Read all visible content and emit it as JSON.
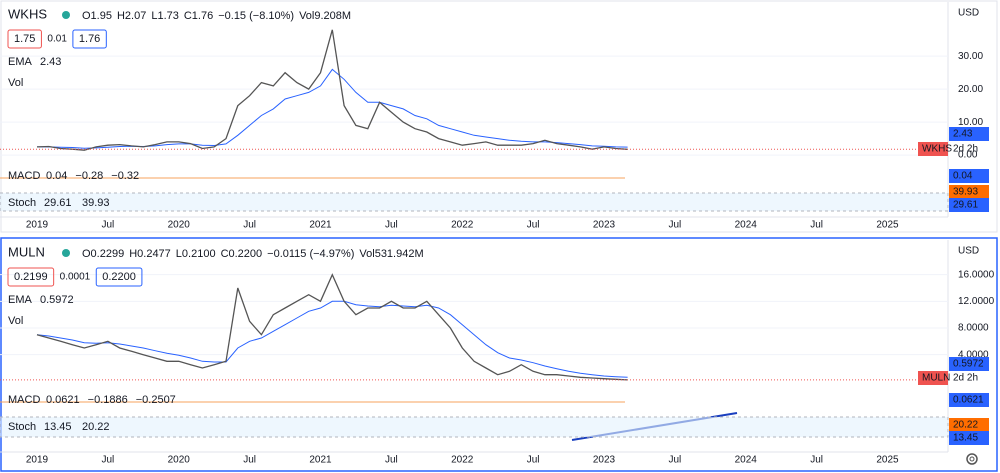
{
  "months": [
    "2019-01",
    "2019-02",
    "2019-03",
    "2019-04",
    "2019-05",
    "2019-06",
    "2019-07",
    "2019-08",
    "2019-09",
    "2019-10",
    "2019-11",
    "2019-12",
    "2020-01",
    "2020-02",
    "2020-03",
    "2020-04",
    "2020-05",
    "2020-06",
    "2020-07",
    "2020-08",
    "2020-09",
    "2020-10",
    "2020-11",
    "2020-12",
    "2021-01",
    "2021-02",
    "2021-03",
    "2021-04",
    "2021-05",
    "2021-06",
    "2021-07",
    "2021-08",
    "2021-09",
    "2021-10",
    "2021-11",
    "2021-12",
    "2022-01",
    "2022-02",
    "2022-03",
    "2022-04",
    "2022-05",
    "2022-06",
    "2022-07",
    "2022-08",
    "2022-09",
    "2022-10",
    "2022-11",
    "2022-12",
    "2023-01",
    "2023-02",
    "2023-03"
  ],
  "time_axis": [
    "2019",
    "Jul",
    "2020",
    "Jul",
    "2021",
    "Jul",
    "2022",
    "Jul",
    "2023",
    "Jul",
    "2024",
    "Jul",
    "2025"
  ],
  "panes": [
    {
      "symbol": "WKHS",
      "ohlc": [
        "O1.95",
        "H2.07",
        "L1.73",
        "C1.76",
        "−0.15 (−8.10%)",
        "Vol9.208M"
      ],
      "bid": "1.75",
      "spread": "0.01",
      "ask": "1.76",
      "ema_label": "EMA",
      "ema_value": "2.43",
      "vol_label": "Vol",
      "macd_label": "MACD",
      "macd_values": [
        "0.04",
        "−0.28",
        "−0.32"
      ],
      "stoch_label": "Stoch",
      "stoch_values": [
        "29.61",
        "39.93"
      ],
      "currency": "USD",
      "countdown": "2d 2h",
      "ylim": [
        -3,
        44
      ],
      "yticks": [
        {
          "value": 30,
          "label": "30.00"
        },
        {
          "value": 20,
          "label": "20.00"
        },
        {
          "value": 10,
          "label": "10.00"
        },
        {
          "value": 0,
          "label": "0.00"
        }
      ],
      "price_color": "#555555",
      "ema_color": "#2962ff",
      "close": [
        2.5,
        2.6,
        2,
        1.8,
        1.5,
        2.5,
        3,
        3.2,
        2.8,
        2.5,
        3.2,
        4,
        4,
        3.5,
        2,
        2.5,
        5,
        15,
        18,
        22,
        21,
        25,
        22,
        20,
        25,
        38,
        15,
        9,
        8,
        16,
        13,
        10,
        8,
        7,
        5,
        4,
        3,
        3.5,
        4,
        3,
        3,
        3,
        3.5,
        4.5,
        3.5,
        3,
        2.5,
        1.8,
        2.5,
        2,
        1.76
      ],
      "ema": [
        2.5,
        2.5,
        2.4,
        2.3,
        2.1,
        2.2,
        2.4,
        2.6,
        2.7,
        2.6,
        2.8,
        3.2,
        3.4,
        3.4,
        3,
        2.9,
        3.4,
        6,
        9,
        12,
        14,
        17,
        18,
        19,
        21,
        26,
        23,
        19,
        16,
        16,
        15,
        14,
        12,
        11,
        9,
        8,
        7,
        6,
        5.5,
        5,
        4.5,
        4.2,
        4,
        4,
        3.8,
        3.5,
        3.2,
        2.8,
        2.7,
        2.5,
        2.43
      ]
    },
    {
      "symbol": "MULN",
      "ohlc": [
        "O0.2299",
        "H0.2477",
        "L0.2100",
        "C0.2200",
        "−0.0115 (−4.97%)",
        "Vol531.942M"
      ],
      "bid": "0.2199",
      "spread": "0.0001",
      "ask": "0.2200",
      "ema_label": "EMA",
      "ema_value": "0.5972",
      "vol_label": "Vol",
      "macd_label": "MACD",
      "macd_values": [
        "0.0621",
        "−0.1886",
        "−0.2507"
      ],
      "stoch_label": "Stoch",
      "stoch_values": [
        "13.45",
        "20.22"
      ],
      "currency": "USD",
      "countdown": "2d 2h",
      "ylim": [
        -1,
        18.5
      ],
      "yticks": [
        {
          "value": 16,
          "label": "16.0000"
        },
        {
          "value": 12,
          "label": "12.0000"
        },
        {
          "value": 8,
          "label": "8.0000"
        },
        {
          "value": 4,
          "label": "4.0000"
        }
      ],
      "price_color": "#555555",
      "ema_color": "#2962ff",
      "close": [
        7,
        6.5,
        6,
        5.5,
        5,
        5.5,
        6,
        5,
        4.5,
        4,
        3.5,
        3,
        3,
        2.5,
        2,
        2.5,
        3,
        14,
        9,
        7,
        10,
        11,
        12,
        13,
        12,
        16,
        12,
        10,
        11,
        11,
        12,
        11,
        11,
        12,
        10,
        8,
        5,
        3,
        2,
        1,
        1.5,
        2.5,
        1.5,
        1,
        1,
        0.8,
        0.6,
        0.5,
        0.4,
        0.3,
        0.22
      ],
      "ema": [
        7,
        6.8,
        6.5,
        6.2,
        5.8,
        5.7,
        5.8,
        5.6,
        5.3,
        5,
        4.6,
        4.2,
        3.9,
        3.5,
        3,
        2.9,
        2.9,
        5,
        6,
        6.5,
        7.5,
        8.5,
        9.5,
        10.5,
        11,
        12,
        12,
        11.5,
        11.3,
        11.2,
        11.4,
        11.3,
        11.2,
        11.4,
        11,
        10,
        8.5,
        7,
        5.5,
        4.3,
        3.5,
        3.2,
        2.8,
        2.3,
        1.9,
        1.5,
        1.2,
        1,
        0.8,
        0.7,
        0.6
      ]
    }
  ]
}
